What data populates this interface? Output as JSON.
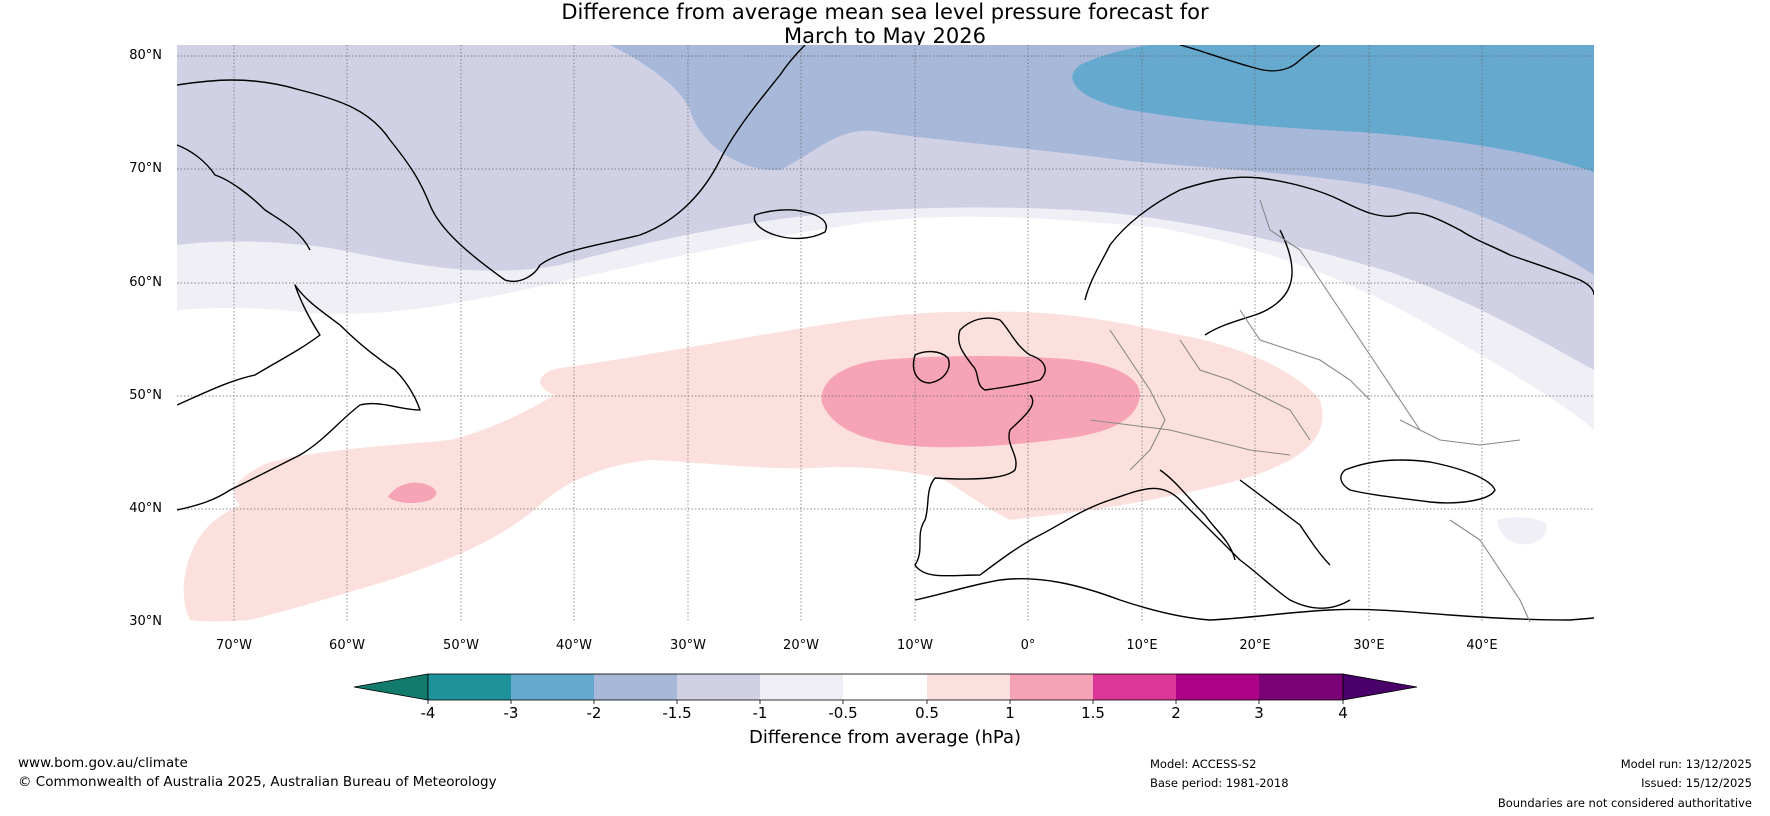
{
  "title": {
    "line1": "Difference from average mean sea level pressure forecast for",
    "line2": "March to May 2026"
  },
  "map": {
    "lat_labels": [
      "80°N",
      "70°N",
      "60°N",
      "50°N",
      "40°N",
      "30°N"
    ],
    "lon_labels": [
      "70°W",
      "60°W",
      "50°W",
      "40°W",
      "30°W",
      "20°W",
      "10°W",
      "0°",
      "10°E",
      "20°E",
      "30°E",
      "40°E"
    ],
    "extent": {
      "lon": [
        -75,
        50
      ],
      "lat": [
        30,
        81
      ]
    },
    "colors": {
      "neg4": "#137a6e",
      "neg3": "#1f9399",
      "neg2": "#65a9cf",
      "neg15": "#a7b8d9",
      "neg1": "#d1d1e6",
      "neg05": "#f1eff6",
      "zero": "#ffffff",
      "pos05": "#fbe0dd",
      "pos1": "#f7a3b7",
      "pos15": "#dc3696",
      "pos2": "#ad0286",
      "pos3": "#7b0177",
      "pos4": "#4a006a"
    }
  },
  "colorbar": {
    "ticks": [
      "-4",
      "-3",
      "-2",
      "-1.5",
      "-1",
      "-0.5",
      "0.5",
      "1",
      "1.5",
      "2",
      "3",
      "4"
    ],
    "label": "Difference from average (hPa)"
  },
  "footer": {
    "website": "www.bom.gov.au/climate",
    "copyright": "© Commonwealth of Australia 2025, Australian Bureau of Meteorology",
    "model": "Model: ACCESS-S2",
    "base_period": "Base period: 1981-2018",
    "model_run": "Model run: 13/12/2025",
    "issued": "Issued: 15/12/2025",
    "disclaimer": "Boundaries are not considered authoritative"
  }
}
